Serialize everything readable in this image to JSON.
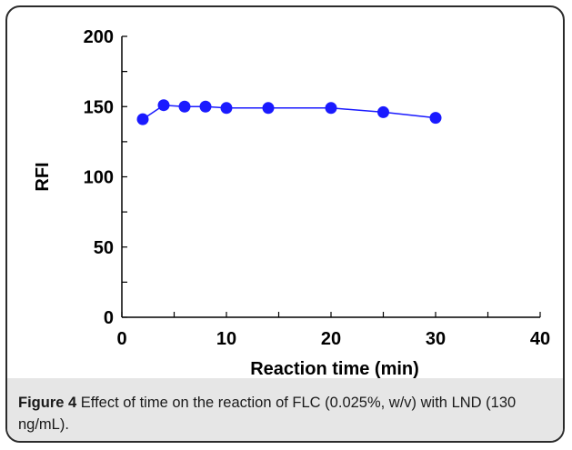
{
  "chart_data": {
    "type": "line",
    "title": "",
    "xlabel": "Reaction time (min)",
    "ylabel": "RFI",
    "xlim": [
      0,
      40
    ],
    "ylim": [
      0,
      200
    ],
    "x_ticks": [
      "0",
      "10",
      "20",
      "30",
      "40"
    ],
    "y_ticks": [
      "0",
      "50",
      "100",
      "150",
      "200"
    ],
    "grid": false,
    "legend": "none",
    "series": [
      {
        "x": [
          2,
          4,
          6,
          8,
          10,
          14,
          20,
          25,
          30
        ],
        "y": [
          141,
          151,
          150,
          150,
          149,
          149,
          149,
          146,
          142
        ]
      }
    ],
    "colors": {
      "marker": "#1a1aff",
      "line": "#1a1aff",
      "axis": "#000000"
    }
  },
  "caption": {
    "label": "Figure 4",
    "text": " Effect of time on the reaction of FLC (0.025%, w/v) with LND (130 ng/mL)."
  }
}
